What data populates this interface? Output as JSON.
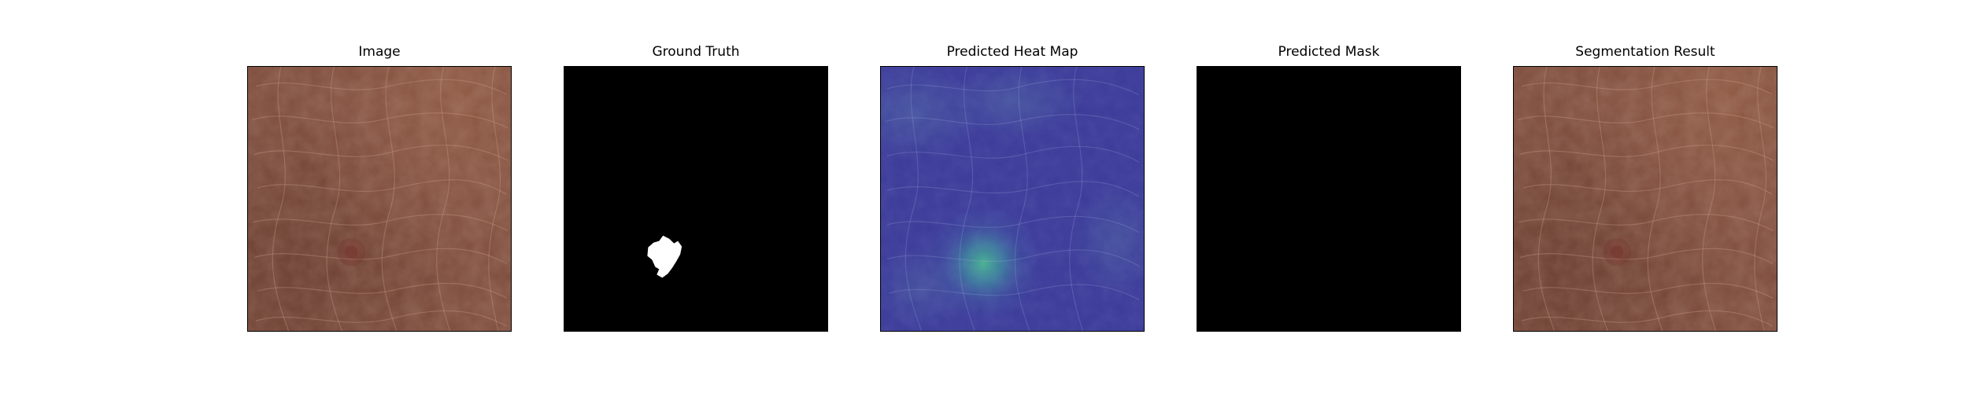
{
  "panels": [
    {
      "id": "image",
      "title": "Image"
    },
    {
      "id": "ground_truth",
      "title": "Ground Truth"
    },
    {
      "id": "heatmap",
      "title": "Predicted Heat Map"
    },
    {
      "id": "mask",
      "title": "Predicted Mask"
    },
    {
      "id": "segmentation",
      "title": "Segmentation Result"
    }
  ]
}
